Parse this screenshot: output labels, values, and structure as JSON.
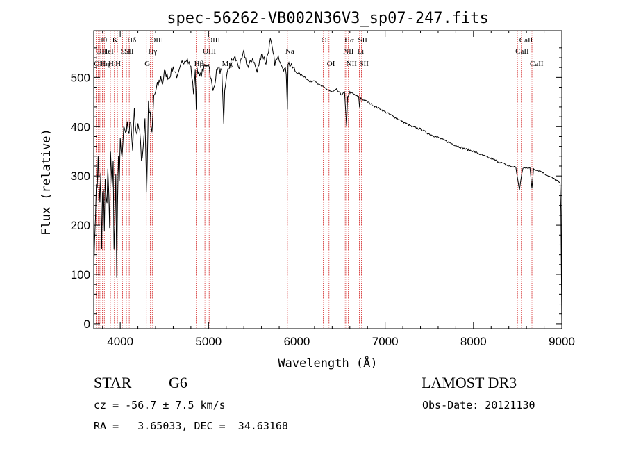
{
  "chart_data": {
    "type": "line",
    "title": "spec-56262-VB002N36V3_sp07-247.fits",
    "xlabel": "Wavelength (Å)",
    "ylabel": "Flux (relative)",
    "xlim": [
      3700,
      9000
    ],
    "ylim": [
      -10,
      595
    ],
    "xticks": [
      4000,
      5000,
      6000,
      7000,
      8000,
      9000
    ],
    "yticks": [
      0,
      100,
      200,
      300,
      400,
      500
    ],
    "series": [
      {
        "name": "flux",
        "x": [
          3700,
          3710,
          3720,
          3730,
          3740,
          3750,
          3760,
          3770,
          3780,
          3790,
          3800,
          3810,
          3820,
          3830,
          3840,
          3850,
          3860,
          3870,
          3880,
          3890,
          3900,
          3910,
          3920,
          3930,
          3940,
          3950,
          3960,
          3970,
          3980,
          3990,
          4000,
          4020,
          4040,
          4060,
          4080,
          4100,
          4120,
          4140,
          4160,
          4180,
          4200,
          4220,
          4240,
          4260,
          4280,
          4300,
          4320,
          4340,
          4360,
          4380,
          4400,
          4420,
          4440,
          4460,
          4480,
          4500,
          4550,
          4600,
          4650,
          4700,
          4750,
          4800,
          4830,
          4850,
          4861,
          4870,
          4900,
          4950,
          5000,
          5050,
          5100,
          5150,
          5172,
          5183,
          5200,
          5250,
          5300,
          5350,
          5400,
          5450,
          5500,
          5550,
          5600,
          5650,
          5700,
          5750,
          5800,
          5850,
          5880,
          5893,
          5900,
          5950,
          6000,
          6050,
          6100,
          6150,
          6200,
          6250,
          6300,
          6350,
          6400,
          6450,
          6500,
          6540,
          6563,
          6575,
          6600,
          6650,
          6700,
          6710,
          6720,
          6750,
          6800,
          6900,
          7000,
          7100,
          7200,
          7300,
          7400,
          7500,
          7600,
          7700,
          7800,
          7900,
          8000,
          8100,
          8200,
          8300,
          8400,
          8480,
          8520,
          8542,
          8560,
          8600,
          8640,
          8662,
          8680,
          8720,
          8760,
          8800,
          8850,
          8900,
          8950,
          8980,
          8990,
          9000
        ],
        "values": [
          120,
          160,
          220,
          290,
          270,
          340,
          290,
          240,
          300,
          150,
          260,
          270,
          180,
          300,
          260,
          240,
          310,
          280,
          190,
          350,
          300,
          270,
          340,
          150,
          190,
          300,
          90,
          240,
          330,
          280,
          380,
          330,
          410,
          390,
          400,
          380,
          420,
          350,
          440,
          380,
          410,
          390,
          330,
          360,
          420,
          270,
          450,
          420,
          380,
          460,
          470,
          480,
          490,
          500,
          490,
          510,
          500,
          520,
          500,
          530,
          540,
          520,
          470,
          510,
          440,
          520,
          500,
          520,
          530,
          470,
          520,
          510,
          400,
          470,
          500,
          530,
          540,
          520,
          550,
          520,
          540,
          510,
          550,
          530,
          575,
          530,
          540,
          520,
          510,
          440,
          530,
          520,
          510,
          505,
          500,
          490,
          495,
          485,
          480,
          475,
          470,
          475,
          465,
          470,
          400,
          460,
          470,
          465,
          460,
          440,
          458,
          455,
          450,
          440,
          430,
          420,
          410,
          400,
          395,
          385,
          378,
          370,
          362,
          355,
          350,
          342,
          335,
          328,
          320,
          318,
          270,
          300,
          315,
          318,
          315,
          275,
          315,
          312,
          310,
          305,
          300,
          295,
          290,
          285,
          230,
          0
        ]
      }
    ],
    "line_markers": [
      {
        "w": 3727,
        "label": "OII",
        "row": 3
      },
      {
        "w": 3750,
        "label": "OII",
        "row": 2
      },
      {
        "w": 3770,
        "label": "Hθ",
        "row": 1
      },
      {
        "w": 3798,
        "label": "Hη",
        "row": 3
      },
      {
        "w": 3820,
        "label": "HeI",
        "row": 2
      },
      {
        "w": 3889,
        "label": "Hη",
        "row": 3
      },
      {
        "w": 3934,
        "label": "K",
        "row": 1
      },
      {
        "w": 3968,
        "label": "H",
        "row": 3
      },
      {
        "w": 4026,
        "label": "SII",
        "row": 2
      },
      {
        "w": 4102,
        "label": "Hδ",
        "row": 1
      },
      {
        "w": 4070,
        "label": "SII",
        "row": 2
      },
      {
        "w": 4300,
        "label": "G",
        "row": 3
      },
      {
        "w": 4340,
        "label": "Hγ",
        "row": 2
      },
      {
        "w": 4363,
        "label": "OIII",
        "row": 1
      },
      {
        "w": 4861,
        "label": "Hβ",
        "row": 3
      },
      {
        "w": 4959,
        "label": "OIII",
        "row": 2
      },
      {
        "w": 5007,
        "label": "OIII",
        "row": 1
      },
      {
        "w": 5175,
        "label": "Mg",
        "row": 3
      },
      {
        "w": 5893,
        "label": "Na",
        "row": 2
      },
      {
        "w": 6300,
        "label": "OI",
        "row": 1
      },
      {
        "w": 6364,
        "label": "OI",
        "row": 3
      },
      {
        "w": 6548,
        "label": "NII",
        "row": 2
      },
      {
        "w": 6563,
        "label": "Hα",
        "row": 1
      },
      {
        "w": 6583,
        "label": "NII",
        "row": 3
      },
      {
        "w": 6707,
        "label": "Li",
        "row": 2
      },
      {
        "w": 6716,
        "label": "SII",
        "row": 1
      },
      {
        "w": 6731,
        "label": "SII",
        "row": 3
      },
      {
        "w": 8498,
        "label": "CaII",
        "row": 2
      },
      {
        "w": 8542,
        "label": "CaII",
        "row": 1
      },
      {
        "w": 8662,
        "label": "CaII",
        "row": 3
      }
    ]
  },
  "info": {
    "object_class": "STAR",
    "subclass": "G6",
    "redshift": "cz = -56.7 ± 7.5 km/s",
    "coordinates": "RA =   3.65033, DEC =  34.63168",
    "survey": "LAMOST DR3",
    "obs_date": "Obs-Date: 20121130"
  }
}
